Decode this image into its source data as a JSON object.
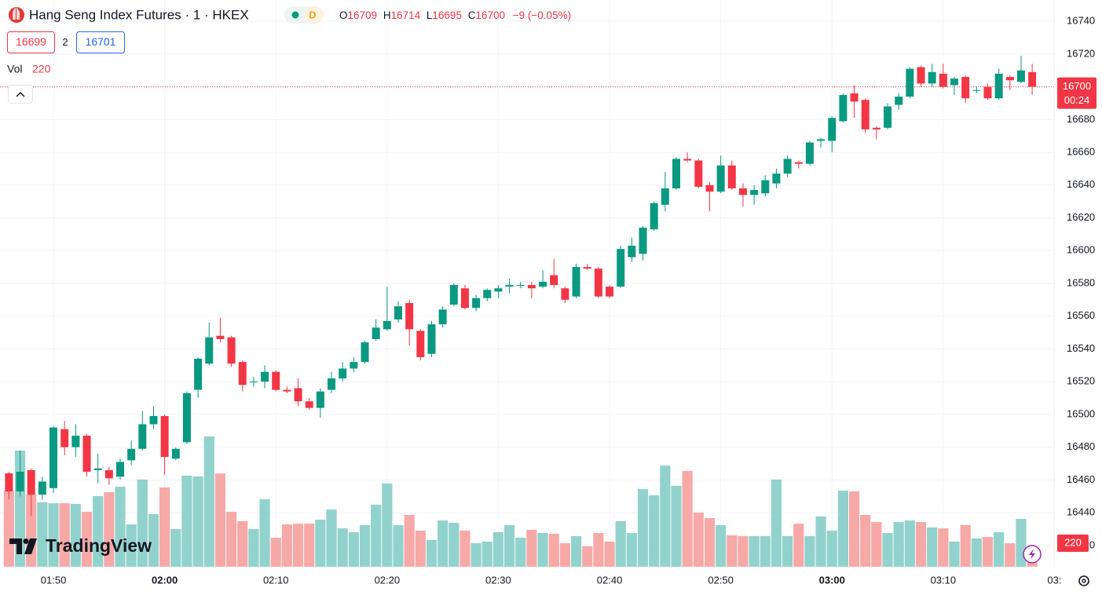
{
  "title": "Hang Seng Index Futures · 1 · HKEX",
  "badge": "D",
  "ohlc_labels": [
    "O",
    "H",
    "L",
    "C"
  ],
  "change": {
    "value": -9,
    "label": "−9 (−0.05%)"
  },
  "bid": 16699,
  "spread": 2,
  "ask": 16701,
  "volume_label": "Vol",
  "countdown": "00:24",
  "logo": "TradingView",
  "chart_data": {
    "type": "candlestick",
    "up_color": "#089981",
    "down_color": "#f23645",
    "volume_up_color": "#92d2cc",
    "volume_down_color": "#f7a9a7",
    "grid": true,
    "ylim": [
      16407,
      16753
    ],
    "yticks": [
      16420,
      16440,
      16460,
      16480,
      16500,
      16520,
      16540,
      16560,
      16580,
      16600,
      16620,
      16640,
      16660,
      16680,
      16700,
      16720,
      16740
    ],
    "vlim": [
      0,
      8400
    ],
    "categories": [
      null,
      null,
      null,
      null,
      "01:50",
      null,
      null,
      null,
      null,
      null,
      null,
      null,
      null,
      null,
      "02:00",
      null,
      null,
      null,
      null,
      null,
      null,
      null,
      null,
      null,
      "02:10",
      null,
      null,
      null,
      null,
      null,
      null,
      null,
      null,
      null,
      "02:20",
      null,
      null,
      null,
      null,
      null,
      null,
      null,
      null,
      null,
      "02:30",
      null,
      null,
      null,
      null,
      null,
      null,
      null,
      null,
      null,
      "02:40",
      null,
      null,
      null,
      null,
      null,
      null,
      null,
      null,
      null,
      "02:50",
      null,
      null,
      null,
      null,
      null,
      null,
      null,
      null,
      null,
      "03:00",
      null,
      null,
      null,
      null,
      null,
      null,
      null,
      null,
      null,
      "03:10",
      null,
      null,
      null,
      null,
      null,
      null,
      null,
      null,
      null,
      "03:"
    ],
    "open": [
      16464,
      16453,
      16466,
      16451,
      16455,
      16491,
      16480,
      16487,
      16466,
      16466,
      16462,
      16472,
      16479,
      16494,
      16499,
      16473,
      16483,
      16515,
      16531,
      16548,
      16547,
      16532,
      16520,
      16520,
      16526,
      16515,
      16516,
      16508,
      16504,
      16515,
      16522,
      16528,
      16532,
      16546,
      16552,
      16558,
      16568,
      16551,
      16537,
      16555,
      16567,
      16577,
      16565,
      16571,
      16575,
      16578,
      16579,
      16579,
      16578,
      16585,
      16577,
      16572,
      16590,
      16589,
      16578,
      16578,
      16596,
      16598,
      16613,
      16628,
      16638,
      16656,
      16655,
      16640,
      16636,
      16652,
      16638,
      16634,
      16635,
      16641,
      16647,
      16654,
      16653,
      16667,
      16667,
      16679,
      16696,
      16692,
      16675,
      16675,
      16689,
      16694,
      16712,
      16702,
      16708,
      16701,
      16706,
      16698,
      16700,
      16693,
      16706,
      16703,
      16709,
      null,
      null
    ],
    "high": [
      16465,
      16478,
      16467,
      16462,
      16493,
      16496,
      16494,
      16488,
      16476,
      16468,
      16473,
      16484,
      16502,
      16505,
      16500,
      16480,
      16514,
      16535,
      16556,
      16559,
      16548,
      16533,
      16523,
      16530,
      16527,
      16517,
      16522,
      16510,
      16516,
      16526,
      16532,
      16535,
      16545,
      16558,
      16578,
      16569,
      16570,
      16552,
      16557,
      16566,
      16580,
      16579,
      16573,
      16577,
      16579,
      16583,
      16581,
      16581,
      16588,
      16595,
      16578,
      16592,
      16592,
      16590,
      16579,
      16603,
      16608,
      16615,
      16630,
      16648,
      16657,
      16660,
      16656,
      16642,
      16658,
      16655,
      16641,
      16640,
      16646,
      16650,
      16658,
      16655,
      16667,
      16669,
      16682,
      16696,
      16701,
      16693,
      16676,
      16690,
      16696,
      16712,
      16713,
      16714,
      16714,
      16706,
      16707,
      16700,
      16702,
      16711,
      16707,
      16719,
      16714,
      null,
      null
    ],
    "low": [
      16448,
      16450,
      16438,
      16448,
      16452,
      16475,
      16474,
      16462,
      16458,
      16457,
      16460,
      16469,
      16478,
      16491,
      16463,
      16472,
      16482,
      16510,
      16530,
      16544,
      16529,
      16514,
      16517,
      16516,
      16514,
      16513,
      16505,
      16503,
      16498,
      16513,
      16520,
      16526,
      16531,
      16545,
      16551,
      16556,
      16542,
      16533,
      16535,
      16553,
      16566,
      16564,
      16563,
      16569,
      16571,
      16574,
      16577,
      16571,
      16577,
      16577,
      16568,
      16571,
      16588,
      16571,
      16571,
      16577,
      16593,
      16594,
      16612,
      16624,
      16637,
      16654,
      16638,
      16624,
      16635,
      16637,
      16627,
      16628,
      16633,
      16638,
      16645,
      16650,
      16652,
      16663,
      16660,
      16678,
      16681,
      16672,
      16668,
      16674,
      16686,
      16693,
      16700,
      16700,
      16699,
      16695,
      16690,
      16696,
      16692,
      16692,
      16698,
      16702,
      16695,
      null,
      null
    ],
    "close": [
      16453,
      16465,
      16451,
      16459,
      16492,
      16480,
      16487,
      16465,
      16467,
      16461,
      16471,
      16479,
      16494,
      16499,
      16474,
      16479,
      16513,
      16534,
      16547,
      16546,
      16531,
      16518,
      16520,
      16526,
      16515,
      16514,
      16508,
      16504,
      16514,
      16522,
      16528,
      16532,
      16544,
      16553,
      16557,
      16566,
      16552,
      16535,
      16555,
      16564,
      16579,
      16565,
      16571,
      16576,
      16577,
      16579,
      16579,
      16577,
      16581,
      16579,
      16570,
      16590,
      16589,
      16572,
      16572,
      16601,
      16603,
      16614,
      16629,
      16638,
      16656,
      16655,
      16639,
      16636,
      16652,
      16638,
      16634,
      16637,
      16643,
      16647,
      16656,
      16653,
      16666,
      16668,
      16681,
      16695,
      16691,
      16674,
      16674,
      16688,
      16694,
      16711,
      16702,
      16709,
      16700,
      16705,
      16693,
      16698,
      16693,
      16708,
      16704,
      16710,
      16700,
      null,
      null
    ],
    "volume": [
      4240,
      6475,
      4025,
      3590,
      3540,
      3540,
      3500,
      3060,
      3940,
      4160,
      4460,
      2360,
      4860,
      2930,
      4420,
      2100,
      5075,
      5030,
      7260,
      5200,
      3060,
      2540,
      2100,
      3760,
      1620,
      2360,
      2400,
      2400,
      2625,
      3190,
      2140,
      1925,
      2320,
      3460,
      4640,
      2320,
      2890,
      2010,
      1490,
      2580,
      2450,
      2010,
      1310,
      1400,
      1925,
      2320,
      1620,
      2060,
      1880,
      1840,
      1310,
      1710,
      1140,
      1880,
      1400,
      2540,
      1880,
      4330,
      3980,
      5640,
      4510,
      5340,
      3020,
      2710,
      2320,
      1750,
      1710,
      1710,
      1710,
      4860,
      1710,
      2400,
      1710,
      2800,
      2010,
      4240,
      4200,
      2890,
      2490,
      1880,
      2490,
      2580,
      2490,
      2190,
      2140,
      1400,
      2320,
      1575,
      1660,
      1925,
      1310,
      2670,
      220,
      null,
      null
    ]
  }
}
